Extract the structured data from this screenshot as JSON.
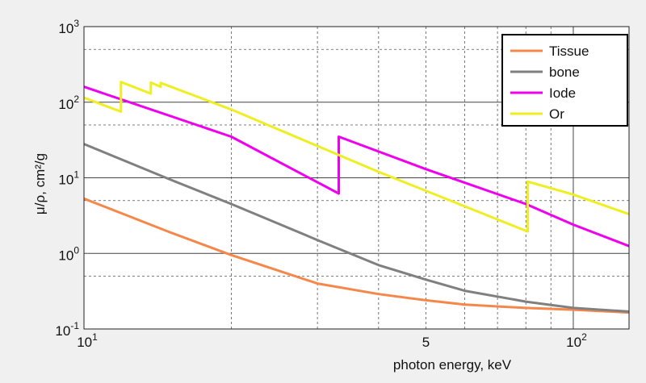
{
  "chart_data": {
    "type": "line",
    "xscale": "log",
    "yscale": "log",
    "xlim": [
      10,
      130
    ],
    "ylim": [
      0.1,
      1000
    ],
    "xlabel": "photon energy, keV",
    "ylabel": "μ/ρ, cm²/g",
    "grid": true,
    "legend_position": "top-right",
    "x_ticks": [
      {
        "value": 10,
        "base": "10",
        "exp": "1"
      },
      {
        "value": 50,
        "base": "5",
        "exp": ""
      },
      {
        "value": 100,
        "base": "10",
        "exp": "2"
      }
    ],
    "y_ticks": [
      {
        "value": 0.1,
        "base": "10",
        "exp": "-1"
      },
      {
        "value": 1,
        "base": "10",
        "exp": "0"
      },
      {
        "value": 10,
        "base": "10",
        "exp": "1"
      },
      {
        "value": 100,
        "base": "10",
        "exp": "2"
      },
      {
        "value": 1000,
        "base": "10",
        "exp": "3"
      }
    ],
    "series": [
      {
        "name": "Tissue",
        "color": "#f5874a",
        "x": [
          10,
          15,
          20,
          30,
          40,
          50,
          60,
          80,
          100,
          130
        ],
        "y": [
          5.3,
          1.9,
          0.95,
          0.4,
          0.29,
          0.24,
          0.21,
          0.19,
          0.18,
          0.165
        ]
      },
      {
        "name": "bone",
        "color": "#808080",
        "x": [
          10,
          15,
          20,
          30,
          40,
          50,
          60,
          80,
          100,
          130
        ],
        "y": [
          28,
          9.5,
          4.5,
          1.5,
          0.7,
          0.45,
          0.32,
          0.23,
          0.19,
          0.17
        ]
      },
      {
        "name": "Iode",
        "color": "#ee00ee",
        "x": [
          10,
          20,
          33.17,
          33.17,
          50,
          80,
          100,
          130
        ],
        "y": [
          160,
          35,
          6.2,
          35,
          13,
          4.5,
          2.4,
          1.25
        ]
      },
      {
        "name": "Or",
        "color": "#eeee22",
        "x": [
          10,
          11.9,
          11.9,
          13.7,
          13.7,
          14.35,
          14.35,
          20,
          40,
          80.7,
          80.7,
          100,
          130
        ],
        "y": [
          115,
          75,
          185,
          130,
          182,
          160,
          180,
          80,
          12,
          1.95,
          8.9,
          6,
          3.3
        ]
      }
    ]
  }
}
